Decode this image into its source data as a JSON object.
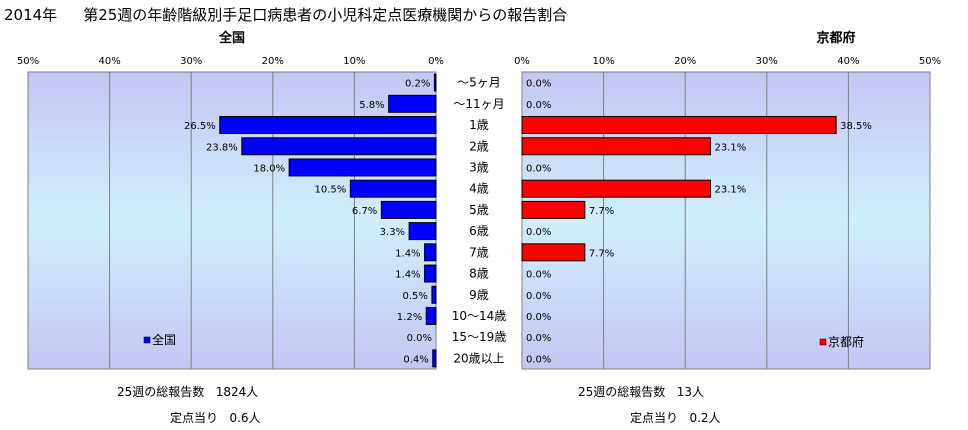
{
  "title": {
    "year": "2014年",
    "text": "第25週の年齢階級別手足口病患者の小児科定点医療機関からの報告割合"
  },
  "chart_data": [
    {
      "type": "bar",
      "orientation": "horizontal",
      "direction": "leftward",
      "title": "全国",
      "categories": [
        "～5ヶ月",
        "～11ヶ月",
        "1歳",
        "2歳",
        "3歳",
        "4歳",
        "5歳",
        "6歳",
        "7歳",
        "8歳",
        "9歳",
        "10～14歳",
        "15～19歳",
        "20歳以上"
      ],
      "series": [
        {
          "name": "全国",
          "values": [
            0.2,
            5.8,
            26.5,
            23.8,
            18.0,
            10.5,
            6.7,
            3.3,
            1.4,
            1.4,
            0.5,
            1.2,
            0.0,
            0.4
          ],
          "labels": [
            "0.2%",
            "5.8%",
            "26.5%",
            "23.8%",
            "18.0%",
            "10.5%",
            "6.7%",
            "3.3%",
            "1.4%",
            "1.4%",
            "0.5%",
            "1.2%",
            "0.0%",
            "0.4%"
          ],
          "color": "#0000ff"
        }
      ],
      "xlim": [
        0,
        50
      ],
      "ticks": [
        "0%",
        "10%",
        "20%",
        "30%",
        "40%",
        "50%"
      ],
      "grid": true,
      "legend": "bottom-left"
    },
    {
      "type": "bar",
      "orientation": "horizontal",
      "direction": "rightward",
      "title": "京都府",
      "categories": [
        "～5ヶ月",
        "～11ヶ月",
        "1歳",
        "2歳",
        "3歳",
        "4歳",
        "5歳",
        "6歳",
        "7歳",
        "8歳",
        "9歳",
        "10～14歳",
        "15～19歳",
        "20歳以上"
      ],
      "series": [
        {
          "name": "京都府",
          "values": [
            0.0,
            0.0,
            38.5,
            23.1,
            0.0,
            23.1,
            7.7,
            0.0,
            7.7,
            0.0,
            0.0,
            0.0,
            0.0,
            0.0
          ],
          "labels": [
            "0.0%",
            "0.0%",
            "38.5%",
            "23.1%",
            "0.0%",
            "23.1%",
            "7.7%",
            "0.0%",
            "7.7%",
            "0.0%",
            "0.0%",
            "0.0%",
            "0.0%",
            "0.0%"
          ],
          "color": "#ff0000"
        }
      ],
      "xlim": [
        0,
        50
      ],
      "ticks": [
        "0%",
        "10%",
        "20%",
        "30%",
        "40%",
        "50%"
      ],
      "grid": true,
      "legend": "bottom-right"
    }
  ],
  "summary": {
    "national": {
      "total_label": "25週の総報告数",
      "total_value": "1824人",
      "per_label": "定点当り",
      "per_value": "0.6人"
    },
    "kyoto": {
      "total_label": "25週の総報告数",
      "total_value": "13人",
      "per_label": "定点当り",
      "per_value": "0.2人"
    }
  }
}
